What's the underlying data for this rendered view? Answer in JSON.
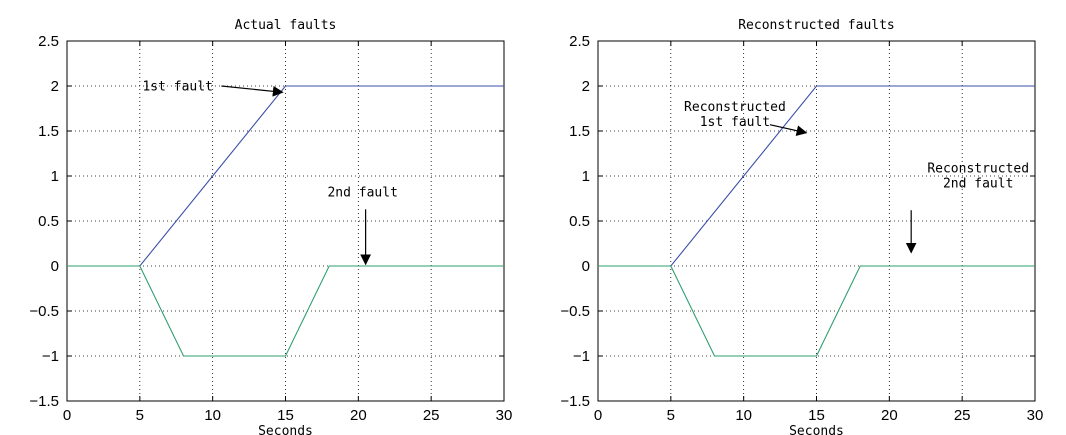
{
  "chart_data": [
    {
      "type": "line",
      "title": "Actual faults",
      "xlabel": "Seconds",
      "ylabel": "",
      "xlim": [
        0,
        30
      ],
      "ylim": [
        -1.5,
        2.5
      ],
      "xticks": [
        0,
        5,
        10,
        15,
        20,
        25,
        30
      ],
      "yticks": [
        -1.5,
        -1,
        -0.5,
        0,
        0.5,
        1,
        1.5,
        2,
        2.5
      ],
      "grid": true,
      "series": [
        {
          "name": "",
          "color": "#3b4fa8",
          "x": [
            0,
            5,
            15,
            30
          ],
          "y": [
            0,
            0,
            2,
            2
          ]
        },
        {
          "name": "",
          "color": "#2e9e6e",
          "x": [
            0,
            5,
            8,
            15,
            18,
            30
          ],
          "y": [
            0,
            0,
            -1,
            -1,
            0,
            0
          ]
        }
      ],
      "annotations": [
        {
          "lines": [
            "1st fault"
          ],
          "text_x": 7.6,
          "text_y": 1.95,
          "arrow_from": [
            10.6,
            2.0
          ],
          "arrow_to": [
            14.8,
            1.93
          ]
        },
        {
          "lines": [
            "2nd fault"
          ],
          "text_x": 20.3,
          "text_y": 0.77,
          "arrow_from": [
            20.5,
            0.63
          ],
          "arrow_to": [
            20.5,
            0.02
          ]
        }
      ]
    },
    {
      "type": "line",
      "title": "Reconstructed faults",
      "xlabel": "Seconds",
      "ylabel": "",
      "xlim": [
        0,
        30
      ],
      "ylim": [
        -1.5,
        2.5
      ],
      "xticks": [
        0,
        5,
        10,
        15,
        20,
        25,
        30
      ],
      "yticks": [
        -1.5,
        -1,
        -0.5,
        0,
        0.5,
        1,
        1.5,
        2,
        2.5
      ],
      "grid": true,
      "series": [
        {
          "name": "",
          "color": "#3b4fa8",
          "x": [
            0,
            5,
            15,
            30
          ],
          "y": [
            0,
            0,
            2,
            2
          ]
        },
        {
          "name": "",
          "color": "#2e9e6e",
          "x": [
            0,
            5,
            8,
            15,
            18,
            30
          ],
          "y": [
            0,
            0,
            -1,
            -1,
            0,
            0
          ]
        }
      ],
      "annotations": [
        {
          "lines": [
            "Reconstructed",
            "1st fault"
          ],
          "text_x": 9.4,
          "text_y": 1.72,
          "arrow_from": [
            11.8,
            1.57
          ],
          "arrow_to": [
            14.3,
            1.48
          ]
        },
        {
          "lines": [
            "Reconstructed",
            "2nd fault"
          ],
          "text_x": 26.1,
          "text_y": 1.04,
          "arrow_from": [
            21.5,
            0.62
          ],
          "arrow_to": [
            21.5,
            0.15
          ]
        }
      ]
    }
  ]
}
